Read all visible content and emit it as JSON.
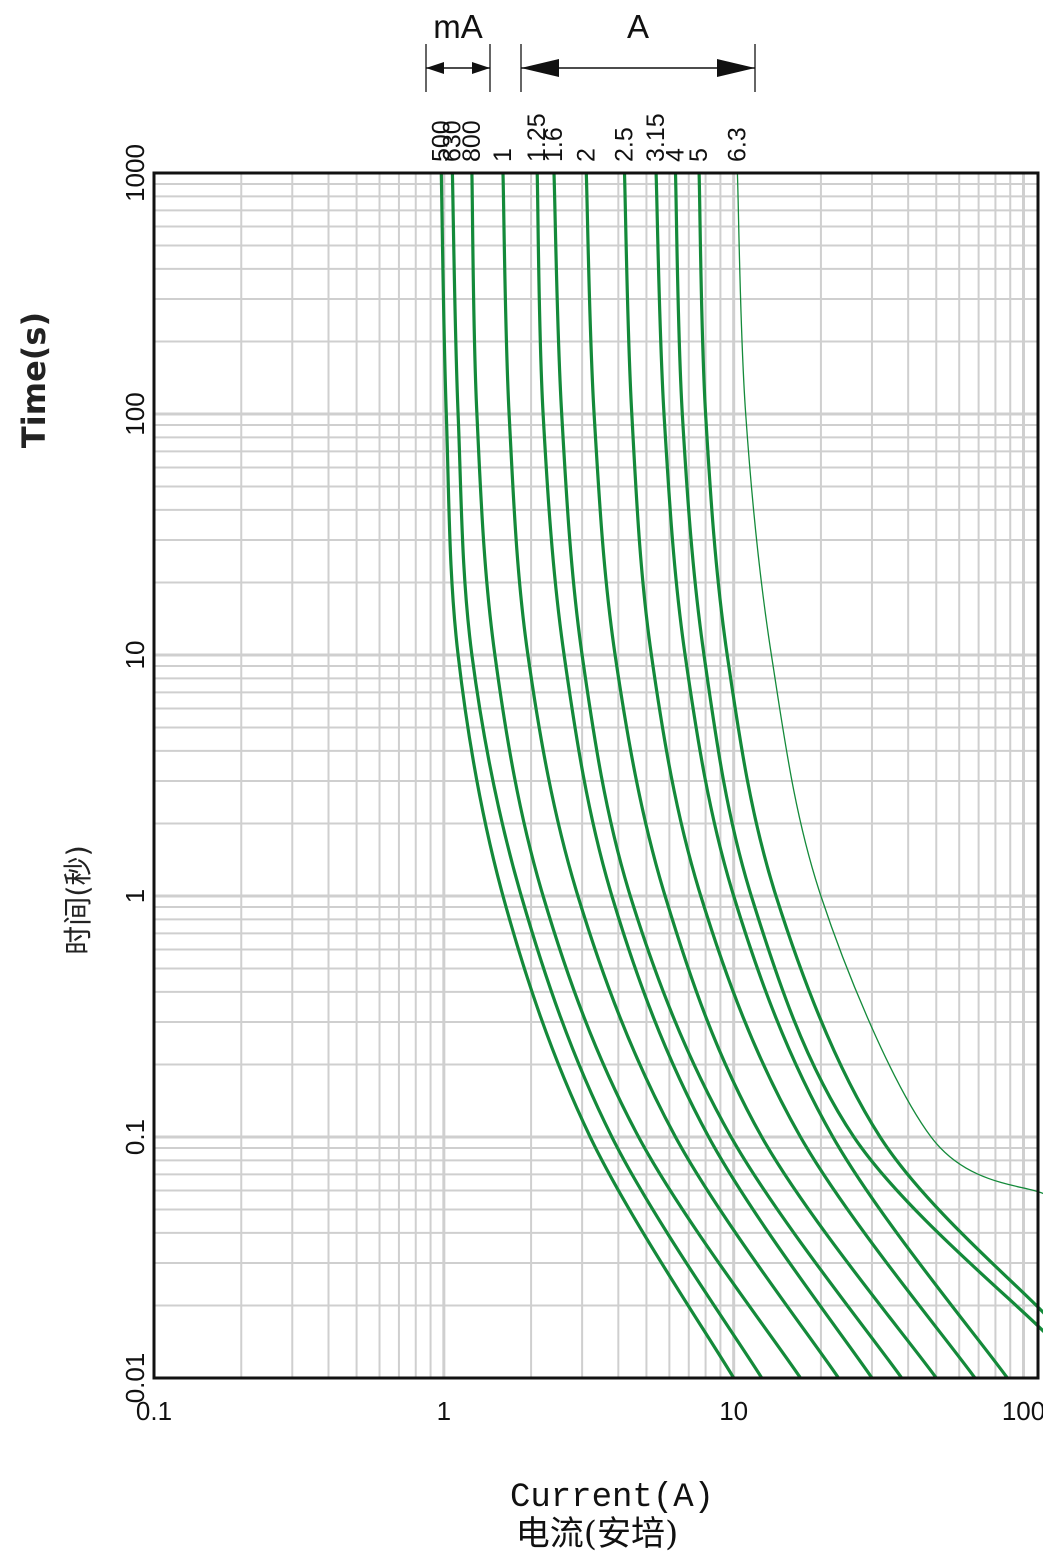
{
  "chart_data": {
    "type": "line",
    "xlabel": "Current(A)",
    "xlabel_cn": "电流(安培)",
    "ylabel": "Time(s)",
    "ylabel_cn": "时间(秒)",
    "x_scale": "log",
    "y_scale": "log",
    "xlim": [
      0.1,
      100
    ],
    "ylim": [
      0.01,
      1000
    ],
    "x_ticks": [
      "0.1",
      "1",
      "10",
      "100"
    ],
    "y_ticks": [
      "0.01",
      "0.1",
      "1",
      "10",
      "100",
      "1000"
    ],
    "grid": true,
    "unit_groups": [
      {
        "label": "mA",
        "ratings": [
          "500",
          "630",
          "800"
        ]
      },
      {
        "label": "A",
        "ratings": [
          "1",
          "1.25",
          "1.6",
          "2",
          "2.5",
          "3.15",
          "4",
          "5",
          "6.3"
        ]
      }
    ],
    "line_color": "#148a3a",
    "series": [
      {
        "rating": "500",
        "points": [
          [
            0.98,
            1000
          ],
          [
            1.02,
            100
          ],
          [
            1.12,
            10
          ],
          [
            1.6,
            1
          ],
          [
            3.2,
            0.1
          ],
          [
            10.0,
            0.01
          ]
        ]
      },
      {
        "rating": "630",
        "points": [
          [
            1.07,
            1000
          ],
          [
            1.12,
            100
          ],
          [
            1.25,
            10
          ],
          [
            1.85,
            1
          ],
          [
            3.8,
            0.1
          ],
          [
            12.5,
            0.01
          ]
        ]
      },
      {
        "rating": "800",
        "points": [
          [
            1.25,
            1000
          ],
          [
            1.3,
            100
          ],
          [
            1.5,
            10
          ],
          [
            2.2,
            1
          ],
          [
            4.7,
            0.1
          ],
          [
            17.0,
            0.01
          ]
        ]
      },
      {
        "rating": "1",
        "points": [
          [
            1.6,
            1000
          ],
          [
            1.68,
            100
          ],
          [
            1.95,
            10
          ],
          [
            2.9,
            1
          ],
          [
            6.3,
            0.1
          ],
          [
            23.0,
            0.01
          ]
        ]
      },
      {
        "rating": "1.25",
        "points": [
          [
            2.1,
            1000
          ],
          [
            2.2,
            100
          ],
          [
            2.6,
            10
          ],
          [
            3.8,
            1
          ],
          [
            8.2,
            0.1
          ],
          [
            30.0,
            0.01
          ]
        ]
      },
      {
        "rating": "1.6",
        "points": [
          [
            2.4,
            1000
          ],
          [
            2.55,
            100
          ],
          [
            3.0,
            10
          ],
          [
            4.4,
            1
          ],
          [
            9.8,
            0.1
          ],
          [
            38.0,
            0.01
          ]
        ]
      },
      {
        "rating": "2",
        "points": [
          [
            3.1,
            1000
          ],
          [
            3.3,
            100
          ],
          [
            3.9,
            10
          ],
          [
            5.8,
            1
          ],
          [
            12.5,
            0.1
          ],
          [
            50.0,
            0.01
          ]
        ]
      },
      {
        "rating": "2.5",
        "points": [
          [
            4.2,
            1000
          ],
          [
            4.45,
            100
          ],
          [
            5.2,
            10
          ],
          [
            7.7,
            1
          ],
          [
            17.0,
            0.1
          ],
          [
            68.0,
            0.01
          ]
        ]
      },
      {
        "rating": "3.15",
        "points": [
          [
            5.4,
            1000
          ],
          [
            5.75,
            100
          ],
          [
            6.8,
            10
          ],
          [
            10.0,
            1
          ],
          [
            22.0,
            0.1
          ],
          [
            88.0,
            0.01
          ]
        ]
      },
      {
        "rating": "4",
        "points": [
          [
            6.3,
            1000
          ],
          [
            6.65,
            100
          ],
          [
            7.9,
            10
          ],
          [
            11.5,
            1
          ],
          [
            26.0,
            0.1
          ],
          [
            118.0,
            0.0155
          ]
        ]
      },
      {
        "rating": "5",
        "points": [
          [
            7.6,
            1000
          ],
          [
            8.0,
            100
          ],
          [
            9.5,
            10
          ],
          [
            14.0,
            1
          ],
          [
            32.0,
            0.1
          ],
          [
            118.0,
            0.0185
          ]
        ]
      },
      {
        "rating": "6.3",
        "thin": true,
        "points": [
          [
            10.3,
            1000
          ],
          [
            11.0,
            100
          ],
          [
            13.5,
            10
          ],
          [
            20.0,
            1
          ],
          [
            48.0,
            0.1
          ],
          [
            118.0,
            0.058
          ]
        ]
      }
    ]
  }
}
